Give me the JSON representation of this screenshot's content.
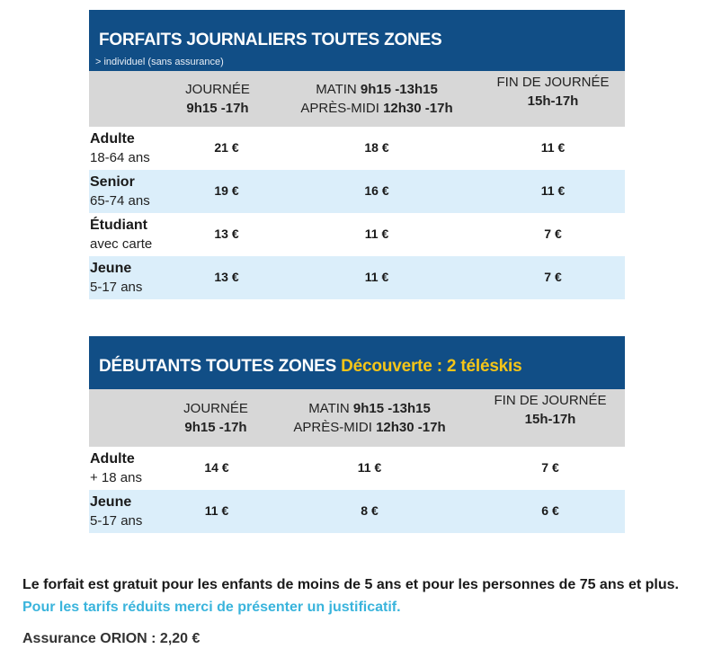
{
  "daily": {
    "title": "FORFAITS JOURNALIERS TOUTES ZONES",
    "subtitle": "> individuel (sans assurance)",
    "columns": [
      {
        "line1": "JOURNÉE",
        "line1_bold": "",
        "line2": "",
        "line2_bold": "9h15 -17h"
      },
      {
        "line1": "MATIN ",
        "line1_bold": "9h15 -13h15",
        "line2": "APRÈS-MIDI ",
        "line2_bold": "12h30 -17h"
      },
      {
        "line1": "FIN DE JOURNÉE",
        "line1_bold": "",
        "line2": "",
        "line2_bold": "15h-17h"
      }
    ],
    "rows": [
      {
        "name": "Adulte",
        "sub": "18-64 ans",
        "prices": [
          "21 €",
          "18 €",
          "11 €"
        ]
      },
      {
        "name": "Senior",
        "sub": "65-74 ans",
        "prices": [
          "19 €",
          "16 €",
          "11 €"
        ]
      },
      {
        "name": "Étudiant",
        "sub": "avec carte",
        "prices": [
          "13 €",
          "11 €",
          "7 €"
        ]
      },
      {
        "name": "Jeune",
        "sub": "5-17 ans",
        "prices": [
          "13 €",
          "11 €",
          "7 €"
        ]
      }
    ]
  },
  "beginners": {
    "title": "DÉBUTANTS TOUTES ZONES ",
    "title_highlight": "Découverte : 2 téléskis",
    "columns": [
      {
        "line1": "JOURNÉE",
        "line1_bold": "",
        "line2": "",
        "line2_bold": "9h15 -17h"
      },
      {
        "line1": "MATIN ",
        "line1_bold": "9h15 -13h15",
        "line2": "APRÈS-MIDI ",
        "line2_bold": "12h30 -17h"
      },
      {
        "line1": "FIN DE JOURNÉE",
        "line1_bold": "",
        "line2": "",
        "line2_bold": "15h-17h"
      }
    ],
    "rows": [
      {
        "name": "Adulte",
        "sub": "+ 18 ans",
        "prices": [
          "14 €",
          "11 €",
          "7 €"
        ]
      },
      {
        "name": "Jeune",
        "sub": "5-17 ans",
        "prices": [
          "11 €",
          "8 €",
          "6 €"
        ]
      }
    ]
  },
  "note": {
    "text": "Le forfait est gratuit pour les enfants de moins de 5 ans et pour les personnes de 75 ans et plus. ",
    "link": "Pour les tarifs réduits merci de présenter un justificatif."
  },
  "insurance": "Assurance ORION : 2,20 €",
  "colors": {
    "header_blue": "#114e86",
    "highlight_yellow": "#f5c518",
    "link_cyan": "#3ab4dc",
    "row_alt": "#dbeefa",
    "head_grey": "#d7d7d7"
  }
}
